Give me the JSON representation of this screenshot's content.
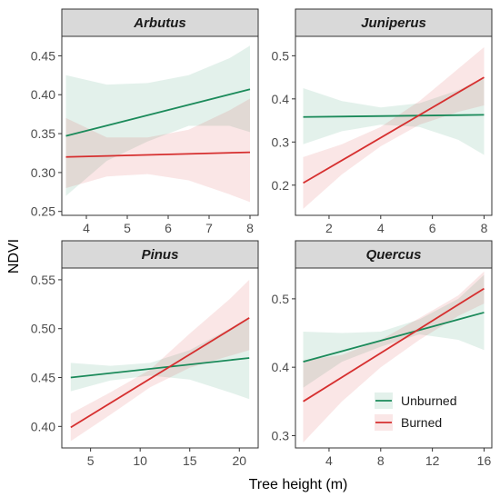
{
  "chart_data": {
    "type": "line",
    "xlabel": "Tree height (m)",
    "ylabel": "NDVI",
    "legend": {
      "placement": "bottom-right",
      "entries": [
        {
          "label": "Unburned",
          "color": "#1b8a5a"
        },
        {
          "label": "Burned",
          "color": "#d62f2f"
        }
      ]
    },
    "grid": false,
    "panels": [
      {
        "title": "Arbutus",
        "xlim": [
          3.4,
          8.2
        ],
        "ylim": [
          0.245,
          0.475
        ],
        "xticks": [
          4,
          5,
          6,
          7,
          8
        ],
        "yticks": [
          0.25,
          0.3,
          0.35,
          0.4,
          0.45
        ],
        "ytick_labels": [
          "0.25",
          "0.30",
          "0.35",
          "0.40",
          "0.45"
        ],
        "series": [
          {
            "name": "Unburned",
            "x": [
              3.5,
              8
            ],
            "y": [
              0.347,
              0.407
            ],
            "band_x": [
              3.5,
              4.5,
              5.5,
              6.5,
              7.5,
              8
            ],
            "band_lower": [
              0.27,
              0.315,
              0.34,
              0.36,
              0.36,
              0.352
            ],
            "band_upper": [
              0.425,
              0.413,
              0.415,
              0.425,
              0.447,
              0.463
            ]
          },
          {
            "name": "Burned",
            "x": [
              3.5,
              8
            ],
            "y": [
              0.32,
              0.326
            ],
            "band_x": [
              3.5,
              4.5,
              5.5,
              6.5,
              7.5,
              8
            ],
            "band_lower": [
              0.28,
              0.295,
              0.298,
              0.29,
              0.272,
              0.262
            ],
            "band_upper": [
              0.37,
              0.345,
              0.345,
              0.355,
              0.38,
              0.395
            ]
          }
        ]
      },
      {
        "title": "Juniperus",
        "xlim": [
          0.7,
          8.3
        ],
        "ylim": [
          0.13,
          0.545
        ],
        "xticks": [
          2,
          4,
          6,
          8
        ],
        "yticks": [
          0.2,
          0.3,
          0.4,
          0.5
        ],
        "ytick_labels": [
          "0.2",
          "0.3",
          "0.4",
          "0.5"
        ],
        "series": [
          {
            "name": "Unburned",
            "x": [
              1,
              8
            ],
            "y": [
              0.358,
              0.363
            ],
            "band_x": [
              1,
              2.5,
              4,
              5.5,
              7,
              8
            ],
            "band_lower": [
              0.295,
              0.325,
              0.34,
              0.335,
              0.305,
              0.27
            ],
            "band_upper": [
              0.425,
              0.395,
              0.38,
              0.39,
              0.42,
              0.45
            ]
          },
          {
            "name": "Burned",
            "x": [
              1,
              8
            ],
            "y": [
              0.205,
              0.45
            ],
            "band_x": [
              1,
              2.5,
              4,
              5.5,
              7,
              8
            ],
            "band_lower": [
              0.145,
              0.225,
              0.29,
              0.34,
              0.37,
              0.385
            ],
            "band_upper": [
              0.265,
              0.295,
              0.335,
              0.395,
              0.47,
              0.52
            ]
          }
        ]
      },
      {
        "title": "Pinus",
        "xlim": [
          2.1,
          21.9
        ],
        "ylim": [
          0.378,
          0.562
        ],
        "xticks": [
          5,
          10,
          15,
          20
        ],
        "yticks": [
          0.4,
          0.45,
          0.5,
          0.55
        ],
        "ytick_labels": [
          "0.40",
          "0.45",
          "0.50",
          "0.55"
        ],
        "series": [
          {
            "name": "Unburned",
            "x": [
              3,
              21
            ],
            "y": [
              0.45,
              0.47
            ],
            "band_x": [
              3,
              7,
              11,
              15,
              19,
              21
            ],
            "band_lower": [
              0.436,
              0.447,
              0.452,
              0.448,
              0.435,
              0.428
            ],
            "band_upper": [
              0.465,
              0.462,
              0.465,
              0.478,
              0.5,
              0.512
            ]
          },
          {
            "name": "Burned",
            "x": [
              3,
              21
            ],
            "y": [
              0.399,
              0.511
            ],
            "band_x": [
              3,
              7,
              11,
              15,
              19,
              21
            ],
            "band_lower": [
              0.385,
              0.412,
              0.44,
              0.46,
              0.472,
              0.478
            ],
            "band_upper": [
              0.413,
              0.435,
              0.458,
              0.495,
              0.53,
              0.55
            ]
          }
        ]
      },
      {
        "title": "Quercus",
        "xlim": [
          1.4,
          16.6
        ],
        "ylim": [
          0.282,
          0.545
        ],
        "xticks": [
          4,
          8,
          12,
          16
        ],
        "yticks": [
          0.3,
          0.4,
          0.5
        ],
        "ytick_labels": [
          "0.3",
          "0.4",
          "0.5"
        ],
        "series": [
          {
            "name": "Unburned",
            "x": [
              2,
              16
            ],
            "y": [
              0.408,
              0.48
            ],
            "band_x": [
              2,
              5,
              8,
              11,
              14,
              16
            ],
            "band_lower": [
              0.37,
              0.408,
              0.43,
              0.448,
              0.44,
              0.425
            ],
            "band_upper": [
              0.452,
              0.45,
              0.452,
              0.47,
              0.5,
              0.535
            ]
          },
          {
            "name": "Burned",
            "x": [
              2,
              16
            ],
            "y": [
              0.35,
              0.515
            ],
            "band_x": [
              2,
              5,
              8,
              11,
              14,
              16
            ],
            "band_lower": [
              0.29,
              0.35,
              0.4,
              0.44,
              0.475,
              0.493
            ],
            "band_upper": [
              0.41,
              0.418,
              0.44,
              0.472,
              0.505,
              0.54
            ]
          }
        ]
      }
    ]
  }
}
